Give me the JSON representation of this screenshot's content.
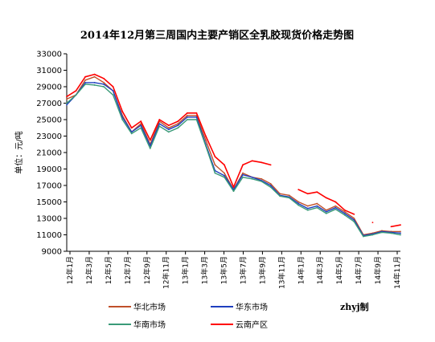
{
  "chart_data": {
    "type": "line",
    "title": "2014年12月第三周国内主要产销区全乳胶现货价格走势图",
    "ylabel": "单位：元/吨",
    "xlabel": "",
    "ylim": [
      9000,
      33000
    ],
    "y_ticks": [
      9000,
      11000,
      13000,
      15000,
      17000,
      19000,
      21000,
      23000,
      25000,
      27000,
      29000,
      31000,
      33000
    ],
    "x_ticks": [
      "12年1月",
      "12年3月",
      "12年5月",
      "12年7月",
      "12年9月",
      "12年11月",
      "13年1月",
      "13年3月",
      "13年5月",
      "13年7月",
      "13年9月",
      "13年11月",
      "14年1月",
      "14年3月",
      "14年5月",
      "14年7月",
      "14年9月",
      "14年11月"
    ],
    "x": [
      0,
      1,
      2,
      3,
      4,
      5,
      6,
      7,
      8,
      9,
      10,
      11,
      12,
      13,
      14,
      15,
      16,
      17,
      18,
      19,
      20,
      21,
      22,
      23,
      24,
      25,
      26,
      27,
      28,
      29,
      30,
      31,
      32,
      33,
      34,
      35,
      36
    ],
    "grid": false,
    "legend_position": "bottom",
    "credit": "zhyj制",
    "series": [
      {
        "name": "华北市场",
        "color": "#C0502A",
        "values": [
          27500,
          28000,
          29800,
          30200,
          29500,
          28500,
          25500,
          23500,
          24500,
          22000,
          24800,
          24000,
          24500,
          25500,
          25500,
          22500,
          19500,
          18500,
          16500,
          18500,
          18000,
          17800,
          17200,
          16000,
          15800,
          15000,
          14500,
          14800,
          14000,
          14500,
          13800,
          13000,
          11000,
          11200,
          11500,
          11400,
          11400
        ]
      },
      {
        "name": "华东市场",
        "color": "#1F3FBF",
        "values": [
          26800,
          28000,
          29500,
          29500,
          29300,
          28500,
          25300,
          23500,
          24300,
          21800,
          24500,
          23800,
          24300,
          25300,
          25300,
          22000,
          18800,
          18200,
          16500,
          18300,
          18000,
          17600,
          17000,
          15800,
          15600,
          14800,
          14200,
          14500,
          13800,
          14300,
          13600,
          12800,
          10900,
          11100,
          11400,
          11300,
          11200
        ]
      },
      {
        "name": "华南市场",
        "color": "#3A9A78",
        "values": [
          27000,
          28000,
          29300,
          29200,
          29000,
          28000,
          25000,
          23300,
          24000,
          21500,
          24200,
          23500,
          24000,
          25000,
          25000,
          21800,
          18500,
          18000,
          16300,
          18000,
          17800,
          17500,
          16800,
          15700,
          15500,
          14600,
          14000,
          14300,
          13600,
          14100,
          13400,
          12600,
          10800,
          11000,
          11300,
          11200,
          11000
        ]
      },
      {
        "name": "云南产区",
        "color": "#FF0000",
        "values": [
          27800,
          28500,
          30200,
          30500,
          30000,
          29000,
          26000,
          24000,
          24800,
          22500,
          25000,
          24300,
          24800,
          25800,
          25800,
          23000,
          20500,
          19500,
          16800,
          19500,
          20000,
          19800,
          19500,
          null,
          null,
          16500,
          16000,
          16200,
          15500,
          15000,
          14000,
          13500,
          null,
          12500,
          null,
          12000,
          12200
        ]
      }
    ]
  }
}
